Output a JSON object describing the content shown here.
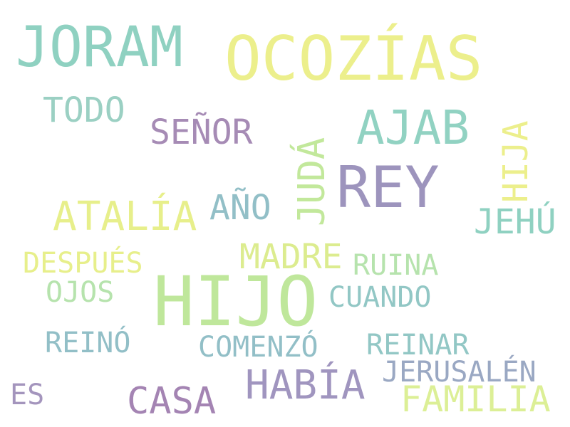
{
  "words": [
    {
      "text": "JORAM",
      "color": "#8fd1c1"
    },
    {
      "text": "OCOZÍAS",
      "color": "#ecef8c"
    },
    {
      "text": "TODO",
      "color": "#9bd0c3"
    },
    {
      "text": "SEÑOR",
      "color": "#a68bb5"
    },
    {
      "text": "AJAB",
      "color": "#91d2c2"
    },
    {
      "text": "JUDÁ",
      "color": "#c2e89b"
    },
    {
      "text": "HIJA",
      "color": "#ecef8c"
    },
    {
      "text": "REY",
      "color": "#9d94bd"
    },
    {
      "text": "ATALÍA",
      "color": "#e7ef8b"
    },
    {
      "text": "AÑO",
      "color": "#92bfc7"
    },
    {
      "text": "JEHÚ",
      "color": "#8fd1c1"
    },
    {
      "text": "MADRE",
      "color": "#dcec8f"
    },
    {
      "text": "DESPUÉS",
      "color": "#e7ef8b"
    },
    {
      "text": "RUINA",
      "color": "#b6e3ad"
    },
    {
      "text": "HIJO",
      "color": "#bfe79b"
    },
    {
      "text": "OJOS",
      "color": "#b6e3ad"
    },
    {
      "text": "CUANDO",
      "color": "#92c7c5"
    },
    {
      "text": "REINÓ",
      "color": "#92bfc7"
    },
    {
      "text": "COMENZÓ",
      "color": "#92bfc7"
    },
    {
      "text": "REINAR",
      "color": "#92c7c5"
    },
    {
      "text": "JERUSALÉN",
      "color": "#9aa8c3"
    },
    {
      "text": "HABÍA",
      "color": "#a095bf"
    },
    {
      "text": "ES",
      "color": "#a495bd"
    },
    {
      "text": "CASA",
      "color": "#a484b3"
    },
    {
      "text": "FAMILIA",
      "color": "#dcef96"
    }
  ]
}
